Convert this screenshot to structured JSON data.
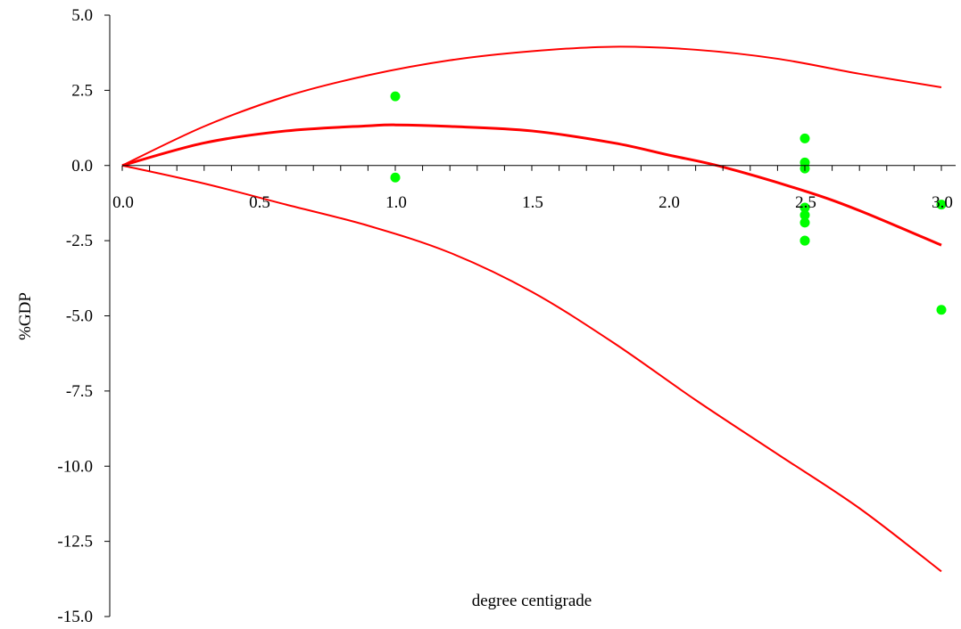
{
  "chart_data": {
    "type": "line",
    "title": "",
    "xlabel": "degree centigrade",
    "ylabel": "%GDP",
    "xlim": [
      0.0,
      3.0
    ],
    "ylim": [
      -15.0,
      5.0
    ],
    "x_ticks": [
      "0.0",
      "0.5",
      "1.0",
      "1.5",
      "2.0",
      "2.5",
      "3.0"
    ],
    "y_ticks": [
      "5.0",
      "2.5",
      "0.0",
      "-2.5",
      "-5.0",
      "-7.5",
      "-10.0",
      "-12.5",
      "-15.0"
    ],
    "x_tick_values": [
      0.0,
      0.5,
      1.0,
      1.5,
      2.0,
      2.5,
      3.0
    ],
    "y_tick_values": [
      5.0,
      2.5,
      0.0,
      -2.5,
      -5.0,
      -7.5,
      -10.0,
      -12.5,
      -15.0
    ],
    "grid": false,
    "colors": {
      "curves": "#ff0000",
      "points": "#00ff00"
    },
    "series": [
      {
        "role": "upper-bound",
        "x": [
          0.0,
          0.3,
          0.6,
          0.9,
          1.2,
          1.5,
          1.8,
          2.1,
          2.4,
          2.7,
          3.0
        ],
        "y": [
          0.0,
          1.3,
          2.3,
          3.0,
          3.5,
          3.8,
          3.95,
          3.85,
          3.55,
          3.05,
          2.6
        ]
      },
      {
        "role": "central-estimate",
        "x": [
          0.0,
          0.3,
          0.6,
          0.9,
          1.0,
          1.2,
          1.5,
          1.8,
          2.0,
          2.2,
          2.5,
          2.7,
          3.0
        ],
        "y": [
          0.0,
          0.75,
          1.15,
          1.32,
          1.35,
          1.3,
          1.15,
          0.75,
          0.35,
          -0.05,
          -0.85,
          -1.5,
          -2.65
        ]
      },
      {
        "role": "lower-bound",
        "x": [
          0.0,
          0.3,
          0.6,
          0.9,
          1.2,
          1.5,
          1.8,
          2.1,
          2.4,
          2.7,
          3.0
        ],
        "y": [
          0.0,
          -0.6,
          -1.3,
          -2.0,
          -2.9,
          -4.2,
          -5.9,
          -7.8,
          -9.6,
          -11.4,
          -13.5
        ]
      },
      {
        "role": "estimates",
        "mark": "scatter",
        "x": [
          1.0,
          1.0,
          2.5,
          2.5,
          2.5,
          2.5,
          2.5,
          2.5,
          2.5,
          2.5,
          3.0,
          3.0
        ],
        "y": [
          2.3,
          -0.4,
          0.9,
          0.1,
          -0.1,
          -1.4,
          -1.65,
          -1.9,
          -2.5,
          -2.5,
          -1.3,
          -4.8
        ]
      }
    ]
  }
}
